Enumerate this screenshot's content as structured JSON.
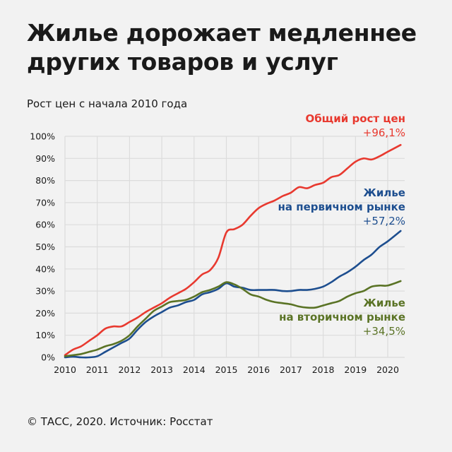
{
  "title_line1": "Жилье дорожает медленнее",
  "title_line2": "других товаров и услуг",
  "subtitle": "Рост цен с начала 2010 года",
  "source": "© ТАСС, 2020. Источник: Росстат",
  "chart_data": {
    "type": "line",
    "title": "Жилье дорожает медленнее других товаров и услуг",
    "subtitle": "Рост цен с начала 2010 года",
    "xlim": [
      2010,
      2020.45
    ],
    "ylim": [
      0,
      100
    ],
    "grid": true,
    "x_ticks": [
      "2010",
      "2011",
      "2012",
      "2013",
      "2014",
      "2015",
      "2016",
      "2017",
      "2018",
      "2019",
      "2020"
    ],
    "y_ticks": [
      "0%",
      "10%",
      "20%",
      "30%",
      "40%",
      "50%",
      "60%",
      "70%",
      "80%",
      "90%",
      "100%"
    ],
    "x": [
      2010,
      2010.25,
      2010.5,
      2010.75,
      2011,
      2011.25,
      2011.5,
      2011.75,
      2012,
      2012.25,
      2012.5,
      2012.75,
      2013,
      2013.25,
      2013.5,
      2013.75,
      2014,
      2014.25,
      2014.5,
      2014.75,
      2015,
      2015.25,
      2015.5,
      2015.75,
      2016,
      2016.25,
      2016.5,
      2016.75,
      2017,
      2017.25,
      2017.5,
      2017.75,
      2018,
      2018.25,
      2018.5,
      2018.75,
      2019,
      2019.25,
      2019.5,
      2019.75,
      2020,
      2020.4
    ],
    "series": [
      {
        "name": "Общий рост цен",
        "end_label": "+96,1%",
        "color": "#e8392f",
        "values": [
          1,
          3.5,
          5,
          7.5,
          10,
          13,
          14,
          14,
          16,
          18,
          20.5,
          22.5,
          24.5,
          27,
          29,
          31,
          34,
          37.5,
          39.5,
          45,
          56.5,
          58,
          60,
          64,
          67.5,
          69.5,
          71,
          73,
          74.5,
          77,
          76.5,
          78,
          79,
          81.5,
          82.5,
          85.5,
          88.5,
          90,
          89.5,
          91,
          93,
          96.1
        ]
      },
      {
        "name": "Жилье на первичном рынке",
        "name_line1": "Жилье",
        "name_line2": "на первичном рынке",
        "end_label": "+57,2%",
        "color": "#1d4e8f",
        "values": [
          0,
          0.3,
          0,
          0,
          0.5,
          2.5,
          4.5,
          6.5,
          8.5,
          12.5,
          16,
          18.5,
          20.5,
          22.5,
          23.5,
          25,
          26,
          28.5,
          29.5,
          31,
          33.5,
          32,
          31.5,
          30.5,
          30.5,
          30.5,
          30.5,
          30,
          30,
          30.5,
          30.5,
          31,
          32,
          34,
          36.5,
          38.5,
          41,
          44,
          46.5,
          50,
          52.5,
          57.2
        ]
      },
      {
        "name": "Жилье на вторичном рынке",
        "name_line1": "Жилье",
        "name_line2": "на вторичном рынке",
        "end_label": "+34,5%",
        "color": "#5a7325",
        "values": [
          0.5,
          1,
          1.5,
          2.5,
          3.5,
          5,
          6,
          7.5,
          10,
          14,
          17.5,
          21,
          23,
          25,
          25.5,
          26,
          27.5,
          29.5,
          30.5,
          32,
          34,
          33,
          31,
          28.5,
          27.5,
          26,
          25,
          24.5,
          24,
          23,
          22.5,
          22.5,
          23.5,
          24.5,
          25.5,
          27.5,
          29,
          30,
          32,
          32.5,
          32.5,
          34.5
        ]
      }
    ]
  }
}
